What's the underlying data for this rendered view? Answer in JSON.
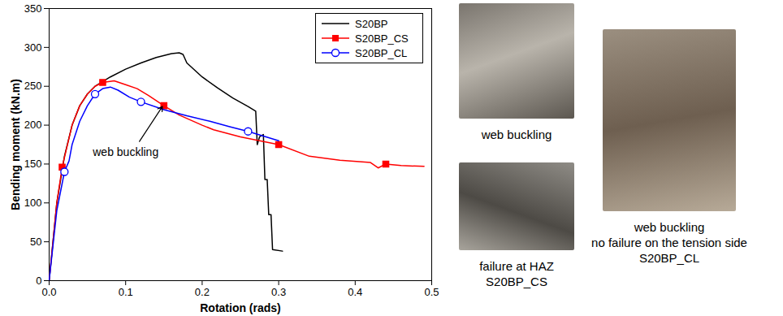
{
  "chart_data": {
    "type": "line",
    "xlabel": "Rotation (rads)",
    "ylabel": "Bending moment (kN.m)",
    "xlim": [
      0,
      0.5
    ],
    "xticks": [
      {
        "value": 0,
        "label": "0.0"
      },
      {
        "value": 0.1,
        "label": "0.1"
      },
      {
        "value": 0.2,
        "label": "0.2"
      },
      {
        "value": 0.3,
        "label": "0.3"
      },
      {
        "value": 0.4,
        "label": "0.4"
      },
      {
        "value": 0.5,
        "label": "0.5"
      }
    ],
    "ylim": [
      0,
      350
    ],
    "yticks": [
      0,
      50,
      100,
      150,
      200,
      250,
      300,
      350
    ],
    "legend": "top-right",
    "annotations": [
      {
        "text": "web buckling",
        "x": 0.1,
        "y": 165,
        "arrow_to": [
          0.148,
          224
        ]
      }
    ],
    "series": [
      {
        "name": "S20BP",
        "color": "#000000",
        "marker": "none",
        "x": [
          0,
          0.01,
          0.02,
          0.03,
          0.04,
          0.05,
          0.06,
          0.08,
          0.1,
          0.12,
          0.14,
          0.16,
          0.17,
          0.175,
          0.18,
          0.2,
          0.22,
          0.24,
          0.26,
          0.27,
          0.272,
          0.275,
          0.28,
          0.282,
          0.285,
          0.287,
          0.29,
          0.292,
          0.305
        ],
        "values": [
          0,
          100,
          160,
          200,
          225,
          240,
          250,
          262,
          272,
          280,
          287,
          292,
          293,
          291,
          280,
          262,
          248,
          235,
          224,
          218,
          175,
          185,
          188,
          130,
          130,
          85,
          85,
          40,
          38
        ]
      },
      {
        "name": "S20BP_CS",
        "color": "#ff0000",
        "marker": "square",
        "x": [
          0,
          0.01,
          0.017,
          0.03,
          0.04,
          0.05,
          0.06,
          0.07,
          0.085,
          0.1,
          0.115,
          0.13,
          0.15,
          0.17,
          0.2,
          0.215,
          0.25,
          0.3,
          0.34,
          0.38,
          0.42,
          0.43,
          0.44,
          0.46,
          0.49
        ],
        "values": [
          0,
          100,
          146,
          200,
          225,
          240,
          250,
          255,
          257,
          252,
          247,
          238,
          225,
          213,
          200,
          194,
          185,
          175,
          160,
          155,
          152,
          145,
          150,
          148,
          147
        ]
      },
      {
        "name": "S20BP_CL",
        "color": "#0000ff",
        "marker": "circle_open",
        "x": [
          0,
          0.01,
          0.02,
          0.026,
          0.03,
          0.04,
          0.05,
          0.06,
          0.07,
          0.08,
          0.09,
          0.105,
          0.12,
          0.15,
          0.18,
          0.21,
          0.236,
          0.26,
          0.28,
          0.3
        ],
        "values": [
          0,
          90,
          140,
          154,
          175,
          205,
          225,
          240,
          247,
          249,
          245,
          236,
          230,
          220,
          212,
          205,
          198,
          192,
          186,
          180
        ]
      }
    ]
  },
  "photos": [
    {
      "caption": [
        "web buckling"
      ]
    },
    {
      "caption": [
        "failure at HAZ",
        "S20BP_CS"
      ]
    },
    {
      "caption": [
        "web buckling",
        "no failure on the tension side",
        "S20BP_CL"
      ]
    }
  ]
}
